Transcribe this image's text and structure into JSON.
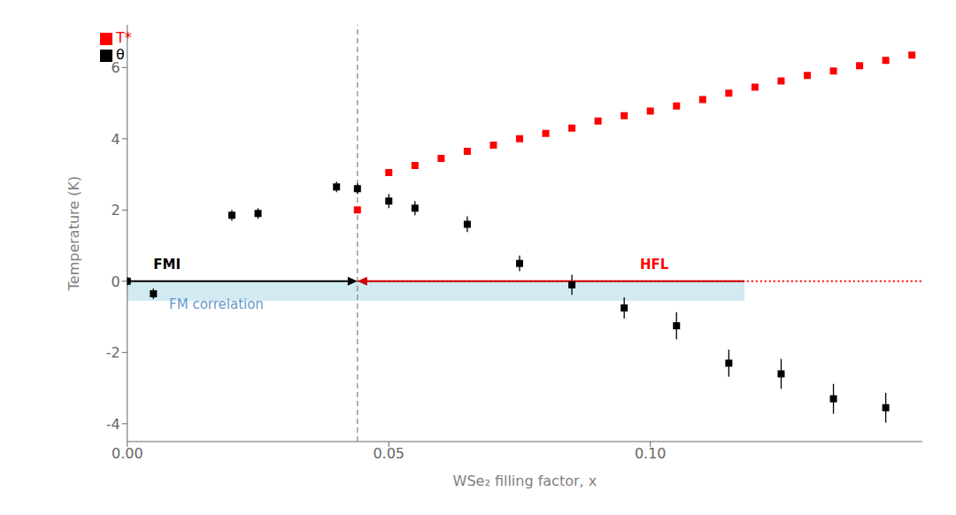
{
  "chart_data": {
    "type": "scatter",
    "xlabel": "WSe₂ filling factor, x",
    "ylabel": "Temperature (K)",
    "xlim": [
      0.0,
      0.152
    ],
    "ylim": [
      -4.5,
      7.2
    ],
    "xticks": [
      {
        "value": 0.0,
        "label": "0.00"
      },
      {
        "value": 0.05,
        "label": "0.05"
      },
      {
        "value": 0.1,
        "label": "0.10"
      }
    ],
    "yticks": [
      -4,
      -2,
      0,
      2,
      4,
      6
    ],
    "legend": "upper left",
    "series": [
      {
        "name": "θ",
        "color": "#000000",
        "marker": "square",
        "x": [
          0.0,
          0.005,
          0.02,
          0.025,
          0.04,
          0.044,
          0.05,
          0.055,
          0.065,
          0.075,
          0.085,
          0.095,
          0.105,
          0.115,
          0.125,
          0.135,
          0.145
        ],
        "values": [
          0.0,
          -0.35,
          1.85,
          1.9,
          2.65,
          2.6,
          2.25,
          2.05,
          1.6,
          0.5,
          -0.1,
          -0.75,
          -1.25,
          -2.3,
          -2.6,
          -3.3,
          -3.55
        ],
        "error": [
          0.12,
          0.15,
          0.15,
          0.15,
          0.15,
          0.15,
          0.2,
          0.2,
          0.22,
          0.22,
          0.28,
          0.3,
          0.38,
          0.38,
          0.42,
          0.42,
          0.42
        ]
      },
      {
        "name": "T*",
        "color": "red",
        "marker": "square",
        "x": [
          0.044,
          0.05,
          0.055,
          0.06,
          0.065,
          0.07,
          0.075,
          0.08,
          0.085,
          0.09,
          0.095,
          0.1,
          0.105,
          0.11,
          0.115,
          0.12,
          0.125,
          0.13,
          0.135,
          0.14,
          0.145,
          0.15
        ],
        "values": [
          2.0,
          3.05,
          3.25,
          3.45,
          3.65,
          3.82,
          4.0,
          4.15,
          4.3,
          4.5,
          4.65,
          4.78,
          4.92,
          5.1,
          5.28,
          5.45,
          5.62,
          5.78,
          5.9,
          6.05,
          6.2,
          6.35
        ]
      }
    ],
    "band": {
      "x": [
        0.0,
        0.118
      ],
      "y": [
        -0.55,
        0.0
      ],
      "color": "#ADD8E6"
    },
    "reference_lines": [
      {
        "x": [
          0.044,
          0.152
        ],
        "y": [
          0.0,
          0.0
        ],
        "color": "red",
        "line_style": "dotted"
      },
      {
        "x": [
          0.044
        ],
        "color": "gray",
        "line_style": "dashed"
      }
    ],
    "arrows": [
      {
        "from": [
          0.0,
          0.0
        ],
        "to": [
          0.044,
          0.0
        ],
        "color": "#000000"
      },
      {
        "from": [
          0.118,
          0.0
        ],
        "to": [
          0.044,
          0.0
        ],
        "color": "#CC0000"
      }
    ],
    "annotations": [
      {
        "text": "FMI",
        "x": 0.005,
        "y": 0.28,
        "color": "#000000",
        "bold": true
      },
      {
        "text": "HFL",
        "x": 0.098,
        "y": 0.28,
        "color": "red",
        "bold": true
      },
      {
        "text": "FM correlation",
        "x": 0.008,
        "y": -0.85,
        "color": "#6699CC",
        "bold": false
      }
    ]
  }
}
